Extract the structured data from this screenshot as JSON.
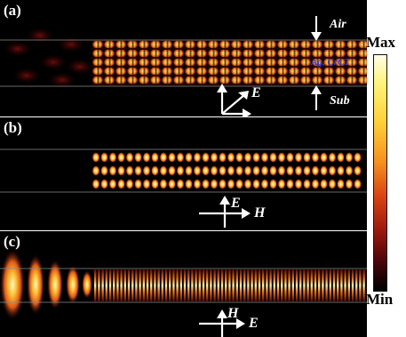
{
  "panels": {
    "a": {
      "label": "(a)",
      "top_medium": "Air",
      "bottom_medium": "Sub",
      "waveguide_label": "Ag, CrCT",
      "vector_e": "E"
    },
    "b": {
      "label": "(b)",
      "vector_e": "E",
      "vector_h": "H"
    },
    "c": {
      "label": "(c)",
      "vector_h": "H",
      "vector_e": "E"
    }
  },
  "colorbar": {
    "max_label": "Max",
    "min_label": "Min"
  },
  "colors": {
    "background": "#000000",
    "hot": "#fff37a",
    "mid": "#f6921e",
    "low": "#9e1a0c",
    "guide_line": "#8a8a8a"
  }
}
